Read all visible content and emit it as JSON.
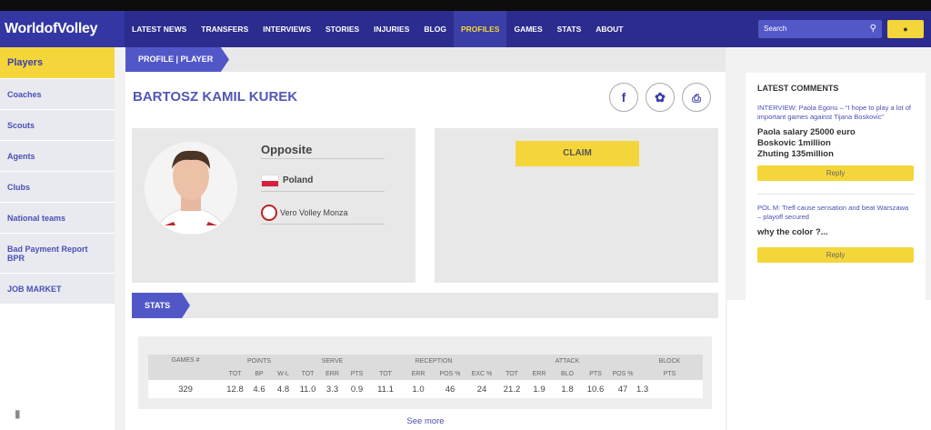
{
  "nav": {
    "logo": "WorldofVolley",
    "items": [
      "LATEST NEWS",
      "TRANSFERS",
      "INTERVIEWS",
      "STORIES",
      "INJURIES",
      "BLOG",
      "PROFILES",
      "GAMES",
      "STATS",
      "ABOUT"
    ],
    "active": "PROFILES",
    "search_placeholder": "Search"
  },
  "sidebar": {
    "items": [
      "Players",
      "Coaches",
      "Scouts",
      "Agents",
      "Clubs",
      "National teams",
      "Bad Payment Report BPR",
      "JOB MARKET"
    ]
  },
  "breadcrumb": "PROFILE | PLAYER",
  "player": {
    "name": "BARTOSZ KAMIL KUREK",
    "position": "Opposite",
    "country": "Poland",
    "club": "Vero Volley Monza",
    "club_logo_text": "VERO VOLLEY"
  },
  "share": {
    "facebook": "f",
    "twitter": "t"
  },
  "claim_label": "CLAIM",
  "stats": {
    "label": "STATS",
    "groups": [
      "GAMES #",
      "POINTS",
      "SERVE",
      "RECEPTION",
      "ATTACK",
      "BLOCK"
    ],
    "subheaders": [
      "TOT",
      "BP",
      "W-L",
      "TOT",
      "ERR",
      "PTS",
      "TOT",
      "ERR",
      "POS %",
      "EXC %",
      "TOT",
      "ERR",
      "BLO",
      "PTS",
      "POS %",
      "PTS"
    ],
    "row": [
      "329",
      "12.8",
      "4.6",
      "4.8",
      "11.0",
      "3.3",
      "0.9",
      "11.1",
      "1.0",
      "46",
      "24",
      "21.2",
      "1.9",
      "1.8",
      "10.6",
      "47",
      "1.3"
    ],
    "see_more": "See more"
  },
  "comments": {
    "title": "LATEST COMMENTS",
    "items": [
      {
        "article": "INTERVIEW: Paola Egonu – “I hope to play a lot of important games against Tijana Boskovic”",
        "text_lines": [
          "Paola salary 25000 euro",
          "Boskovic 1million",
          "Zhuting 135million"
        ],
        "reply": "Reply"
      },
      {
        "article": "POL M: Trefl cause sensation and beat Warszawa – playoff secured",
        "text_lines": [
          "why the color ?..."
        ],
        "reply": "Reply"
      }
    ]
  },
  "colors": {
    "nav": "#2b2c8e",
    "accent": "#5257c8",
    "yellow": "#f5d63a"
  }
}
